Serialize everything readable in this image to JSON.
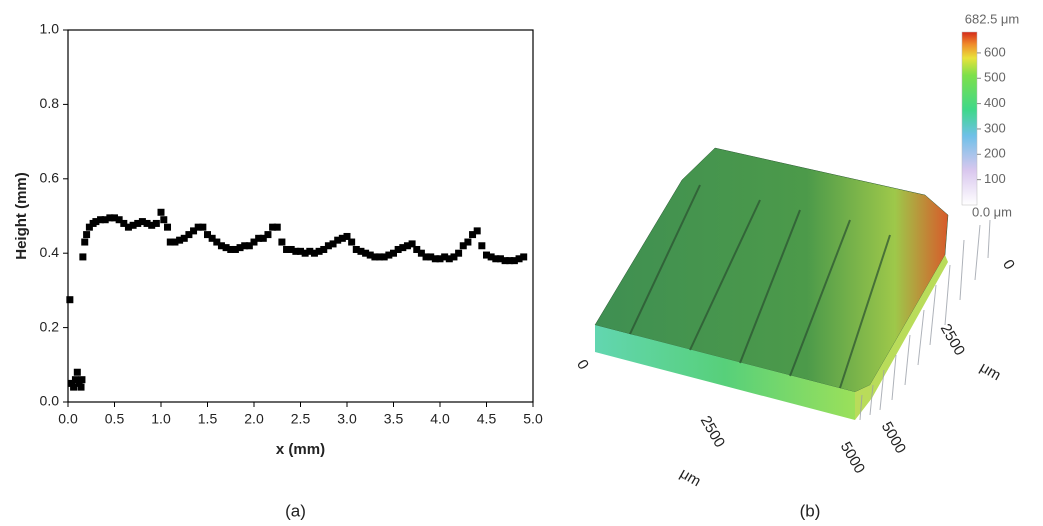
{
  "chart_data": [
    {
      "type": "scatter",
      "xlabel": "x (mm)",
      "ylabel": "Height (mm)",
      "caption": "(a)",
      "color": "#000000",
      "x": [
        0.02,
        0.04,
        0.06,
        0.08,
        0.1,
        0.12,
        0.14,
        0.15,
        0.16,
        0.18,
        0.2,
        0.23,
        0.27,
        0.3,
        0.35,
        0.4,
        0.45,
        0.5,
        0.55,
        0.6,
        0.65,
        0.7,
        0.75,
        0.8,
        0.85,
        0.9,
        0.95,
        1.0,
        1.03,
        1.07,
        1.1,
        1.15,
        1.2,
        1.25,
        1.3,
        1.35,
        1.4,
        1.45,
        1.5,
        1.55,
        1.6,
        1.65,
        1.7,
        1.75,
        1.8,
        1.85,
        1.9,
        1.95,
        2.0,
        2.05,
        2.1,
        2.15,
        2.2,
        2.25,
        2.3,
        2.35,
        2.4,
        2.45,
        2.5,
        2.55,
        2.6,
        2.65,
        2.7,
        2.75,
        2.8,
        2.85,
        2.9,
        2.95,
        3.0,
        3.05,
        3.1,
        3.15,
        3.2,
        3.25,
        3.3,
        3.35,
        3.4,
        3.45,
        3.5,
        3.55,
        3.6,
        3.65,
        3.7,
        3.75,
        3.8,
        3.85,
        3.9,
        3.95,
        4.0,
        4.05,
        4.1,
        4.15,
        4.2,
        4.25,
        4.3,
        4.35,
        4.4,
        4.45,
        4.5,
        4.55,
        4.6,
        4.65,
        4.7,
        4.75,
        4.8,
        4.85,
        4.9
      ],
      "values": [
        0.275,
        0.05,
        0.04,
        0.06,
        0.08,
        0.05,
        0.04,
        0.06,
        0.39,
        0.43,
        0.45,
        0.47,
        0.48,
        0.485,
        0.49,
        0.49,
        0.495,
        0.495,
        0.49,
        0.48,
        0.47,
        0.475,
        0.48,
        0.485,
        0.48,
        0.475,
        0.48,
        0.51,
        0.49,
        0.47,
        0.43,
        0.43,
        0.435,
        0.44,
        0.45,
        0.46,
        0.47,
        0.47,
        0.45,
        0.44,
        0.43,
        0.42,
        0.415,
        0.41,
        0.41,
        0.415,
        0.42,
        0.42,
        0.43,
        0.44,
        0.44,
        0.45,
        0.47,
        0.47,
        0.43,
        0.41,
        0.41,
        0.405,
        0.405,
        0.4,
        0.405,
        0.4,
        0.405,
        0.41,
        0.42,
        0.425,
        0.435,
        0.44,
        0.445,
        0.43,
        0.41,
        0.405,
        0.4,
        0.395,
        0.39,
        0.39,
        0.39,
        0.395,
        0.4,
        0.41,
        0.415,
        0.42,
        0.425,
        0.41,
        0.4,
        0.39,
        0.39,
        0.385,
        0.385,
        0.39,
        0.385,
        0.39,
        0.4,
        0.42,
        0.43,
        0.45,
        0.46,
        0.42,
        0.395,
        0.39,
        0.385,
        0.385,
        0.38,
        0.38,
        0.38,
        0.385,
        0.39
      ],
      "xlim": [
        0,
        5
      ],
      "xticks": [
        {
          "value": 0,
          "label": "0.0"
        },
        0.5,
        {
          "value": 1,
          "label": "1.0"
        },
        1.5,
        {
          "value": 2,
          "label": "2.0"
        },
        2.5,
        {
          "value": 3,
          "label": "3.0"
        },
        3.5,
        {
          "value": 4,
          "label": "4.0"
        },
        4.5,
        {
          "value": 5,
          "label": "5.0"
        }
      ],
      "ylim": [
        0,
        1
      ],
      "yticks": [
        {
          "value": 0,
          "label": "0.0"
        },
        0.2,
        0.4,
        0.6,
        0.8,
        {
          "value": 1,
          "label": "1.0"
        }
      ]
    },
    {
      "type": "surface",
      "caption": "(b)",
      "zlim": [
        0,
        682.5
      ],
      "colorbar_ticks": [
        {
          "value": 0,
          "label": "0.0 μm"
        },
        100,
        200,
        300,
        400,
        500,
        600,
        {
          "value": 682.5,
          "label": "682.5 μm"
        }
      ],
      "xticks": [
        0,
        2500,
        5000
      ],
      "xlabel": "μm",
      "yticks": [
        0,
        2500,
        5000
      ],
      "ylabel": "μm"
    }
  ]
}
